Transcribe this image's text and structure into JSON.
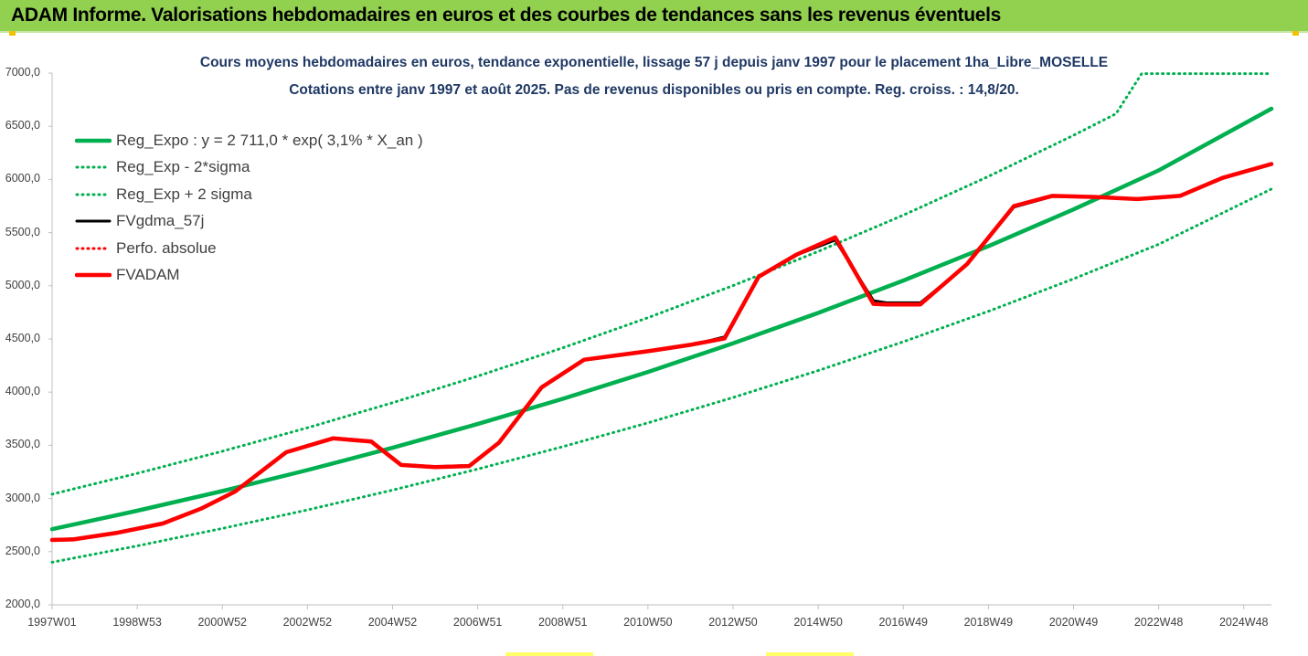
{
  "banner": {
    "title": "ADAM Informe. Valorisations hebdomadaires en euros et des courbes de tendances sans les revenus éventuels"
  },
  "colors": {
    "banner_bg": "#92d050",
    "trend_green": "#00b050",
    "fv_black": "#000000",
    "adam_red": "#ff0000",
    "title_navy": "#1f3864"
  },
  "chart_data": {
    "type": "line",
    "title": "Cours moyens hebdomadaires en euros, tendance exponentielle, lissage 57 j depuis janv 1997  pour le placement 1ha_Libre_MOSELLE",
    "subtitle": "Cotations entre janv 1997 et août 2025. Pas de revenus disponibles ou pris en compte. Reg. croiss. : 14,8/20.",
    "xlabel": "",
    "ylabel": "",
    "x_range": [
      1997.0,
      2025.65
    ],
    "ylim": [
      2000,
      7000
    ],
    "y_ticks": [
      "2000,0",
      "2500,0",
      "3000,0",
      "3500,0",
      "4000,0",
      "4500,0",
      "5000,0",
      "5500,0",
      "6000,0",
      "6500,0",
      "7000,0"
    ],
    "x_ticks": [
      {
        "label": "1997W01",
        "x": 1997.0
      },
      {
        "label": "1998W53",
        "x": 1999.0
      },
      {
        "label": "2000W52",
        "x": 2001.0
      },
      {
        "label": "2002W52",
        "x": 2003.0
      },
      {
        "label": "2004W52",
        "x": 2005.0
      },
      {
        "label": "2006W51",
        "x": 2007.0
      },
      {
        "label": "2008W51",
        "x": 2009.0
      },
      {
        "label": "2010W50",
        "x": 2011.0
      },
      {
        "label": "2012W50",
        "x": 2013.0
      },
      {
        "label": "2014W50",
        "x": 2015.0
      },
      {
        "label": "2016W49",
        "x": 2017.0
      },
      {
        "label": "2018W49",
        "x": 2019.0
      },
      {
        "label": "2020W49",
        "x": 2021.0
      },
      {
        "label": "2022W48",
        "x": 2023.0
      },
      {
        "label": "2024W48",
        "x": 2025.0
      }
    ],
    "grid": false,
    "legend_position": "top-left",
    "series": [
      {
        "name": "Reg_Expo : y = 2 711,0 * exp( 3,1% *  X_an )",
        "style": "solid-thick",
        "color": "#00b050",
        "x": [
          1997.0,
          1999.0,
          2001.0,
          2003.0,
          2005.0,
          2007.0,
          2009.0,
          2011.0,
          2013.0,
          2015.0,
          2017.0,
          2019.0,
          2021.0,
          2023.0,
          2025.65
        ],
        "y": [
          2711,
          2885,
          3070,
          3267,
          3477,
          3700,
          3937,
          4190,
          4459,
          4745,
          5049,
          5373,
          5718,
          6085,
          6665
        ]
      },
      {
        "name": "Reg_Exp - 2*sigma",
        "style": "dotted",
        "color": "#00b050",
        "x": [
          1997.0,
          1999.0,
          2001.0,
          2003.0,
          2005.0,
          2007.0,
          2009.0,
          2011.0,
          2013.0,
          2015.0,
          2017.0,
          2019.0,
          2021.0,
          2023.0,
          2025.65
        ],
        "y": [
          2400,
          2554,
          2718,
          2893,
          3079,
          3277,
          3487,
          3711,
          3949,
          4203,
          4473,
          4760,
          5065,
          5390,
          5910
        ]
      },
      {
        "name": "Reg_Exp + 2 sigma",
        "style": "dotted",
        "color": "#00b050",
        "x": [
          1997.0,
          1999.0,
          2001.0,
          2003.0,
          2005.0,
          2007.0,
          2009.0,
          2011.0,
          2013.0,
          2015.0,
          2017.0,
          2019.0,
          2021.0,
          2022.0,
          2022.6,
          2025.65
        ],
        "y": [
          3040,
          3236,
          3444,
          3665,
          3900,
          4150,
          4417,
          4700,
          5002,
          5323,
          5664,
          6028,
          6415,
          6618,
          6995,
          6995
        ]
      },
      {
        "name": "FVgdma_57j",
        "style": "solid",
        "color": "#000000",
        "x": [
          1997.0,
          1997.5,
          1998.5,
          1999.6,
          2000.5,
          2001.3,
          2002.5,
          2003.6,
          2004.5,
          2005.2,
          2006.0,
          2006.8,
          2007.5,
          2008.5,
          2009.5,
          2011.0,
          2012.0,
          2012.8,
          2013.6,
          2014.5,
          2015.4,
          2016.3,
          2016.6,
          2017.4,
          2018.5,
          2019.6,
          2020.5,
          2021.5,
          2022.5,
          2023.5,
          2024.5,
          2025.65
        ],
        "y": [
          2615,
          2620,
          2680,
          2770,
          2910,
          3070,
          3440,
          3570,
          3540,
          3320,
          3300,
          3310,
          3520,
          4040,
          4300,
          4380,
          4440,
          4520,
          5080,
          5290,
          5430,
          4860,
          4840,
          4840,
          5200,
          5740,
          5840,
          5835,
          5820,
          5850,
          6010,
          6140
        ]
      },
      {
        "name": "Perfo. absolue",
        "style": "dotted",
        "color": "#ff0000",
        "x": [],
        "y": []
      },
      {
        "name": "FVADAM",
        "style": "solid-thick",
        "color": "#ff0000",
        "x": [
          1997.0,
          1997.5,
          1998.5,
          1999.6,
          2000.5,
          2001.3,
          2002.5,
          2003.6,
          2004.5,
          2005.2,
          2006.0,
          2006.8,
          2007.5,
          2008.5,
          2009.5,
          2011.0,
          2012.0,
          2012.8,
          2013.6,
          2014.5,
          2015.4,
          2016.3,
          2016.6,
          2017.4,
          2018.5,
          2019.6,
          2020.5,
          2021.5,
          2022.5,
          2023.5,
          2024.5,
          2025.65
        ],
        "y": [
          2610,
          2615,
          2675,
          2765,
          2905,
          3065,
          3435,
          3565,
          3535,
          3315,
          3295,
          3305,
          3525,
          4045,
          4305,
          4385,
          4445,
          4505,
          5085,
          5295,
          5455,
          4830,
          4825,
          4825,
          5205,
          5750,
          5845,
          5835,
          5815,
          5845,
          6015,
          6145
        ]
      }
    ]
  }
}
